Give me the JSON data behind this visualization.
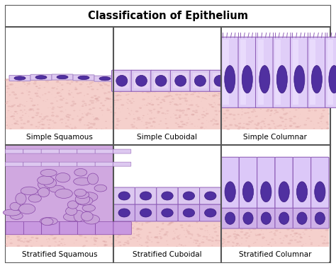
{
  "title": "Classification of Epithelium",
  "labels": [
    "Simple Squamous",
    "Simple Cuboidal",
    "Simple Columnar",
    "Stratified Squamous",
    "Stratified Cuboidal",
    "Stratified Columnar"
  ],
  "bg_color": "#ffffff",
  "border_color": "#555555",
  "title_bg": "#ffffff",
  "cell_light": "#ddc8f0",
  "cell_mid": "#c8a8e0",
  "cell_dark": "#b088cc",
  "nucleus_fill": "#5030a0",
  "nucleus_edge": "#3a1880",
  "pink_bg": "#f5d0cc",
  "pink_dot": "#d8a0a0",
  "membrane_dark": "#9868b8",
  "white": "#ffffff"
}
